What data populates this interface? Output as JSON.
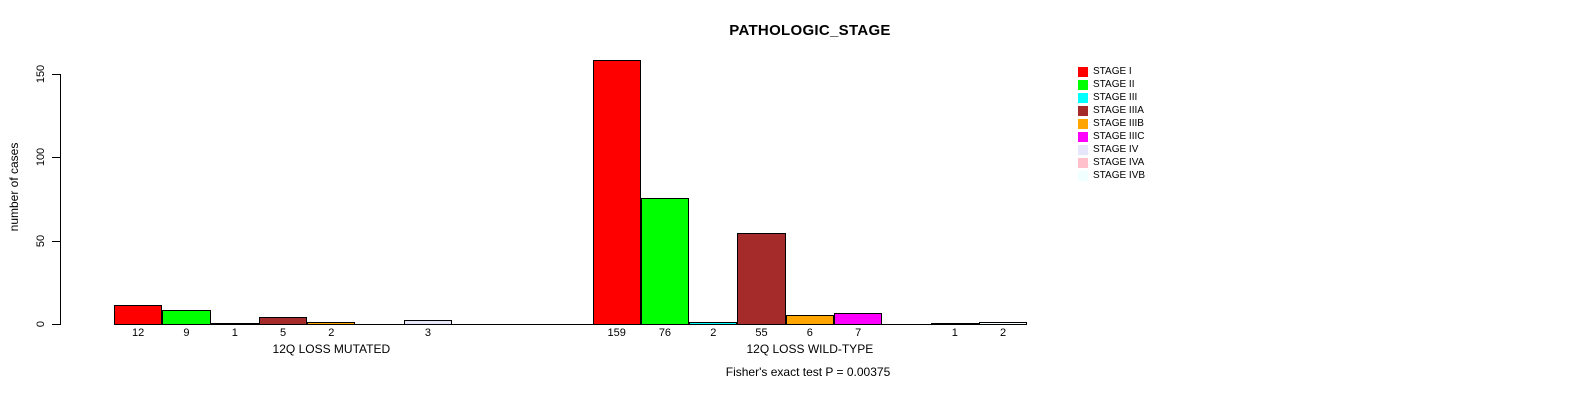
{
  "chart_data": {
    "type": "bar",
    "title": "PATHOLOGIC_STAGE",
    "ylabel": "number of cases",
    "ylim": [
      0,
      150
    ],
    "yticks": [
      "0",
      "50",
      "100",
      "150"
    ],
    "grid": false,
    "legend_position": "topright",
    "categories": [
      "STAGE I",
      "STAGE II",
      "STAGE III",
      "STAGE IIIA",
      "STAGE IIIB",
      "STAGE IIIC",
      "STAGE IV",
      "STAGE IVA",
      "STAGE IVB"
    ],
    "colors": [
      "#FF0000",
      "#00FF00",
      "#00FFFF",
      "#A52A2A",
      "#FFA500",
      "#FF00FF",
      "#E6E6FA",
      "#FFC0CB",
      "#F0FFFF"
    ],
    "groups": [
      {
        "label": "12Q LOSS MUTATED",
        "values": [
          12,
          9,
          1,
          5,
          2,
          0,
          3,
          0,
          0
        ]
      },
      {
        "label": "12Q LOSS WILD-TYPE",
        "values": [
          159,
          76,
          2,
          55,
          6,
          7,
          0,
          1,
          2
        ]
      }
    ],
    "bar_value_labels_shown_for_nonzero_only": true,
    "annotation": "Fisher's exact test P = 0.00375",
    "axis_color": "#000000",
    "background_color": "#FFFFFF"
  }
}
